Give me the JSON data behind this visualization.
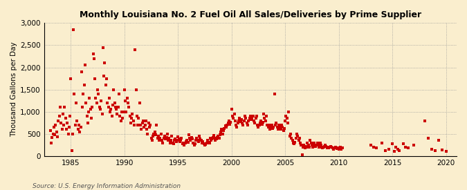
{
  "title": "Monthly Louisiana No. 2 Fuel Oil All Sales/Deliveries by Prime Supplier",
  "ylabel": "Thousand Gallons per Day",
  "source": "Source: U.S. Energy Information Administration",
  "bg_color": "#faeece",
  "dot_color": "#cc0000",
  "dot_size": 5,
  "xlim": [
    1982.5,
    2021
  ],
  "ylim": [
    0,
    3000
  ],
  "yticks": [
    0,
    500,
    1000,
    1500,
    2000,
    2500,
    3000
  ],
  "xticks": [
    1985,
    1990,
    1995,
    2000,
    2005,
    2010,
    2015,
    2020
  ],
  "data_points": [
    [
      1983.08,
      580
    ],
    [
      1983.17,
      300
    ],
    [
      1983.25,
      420
    ],
    [
      1983.33,
      500
    ],
    [
      1983.42,
      650
    ],
    [
      1983.5,
      480
    ],
    [
      1983.58,
      700
    ],
    [
      1983.67,
      550
    ],
    [
      1983.75,
      430
    ],
    [
      1983.83,
      800
    ],
    [
      1983.92,
      900
    ],
    [
      1984.0,
      1100
    ],
    [
      1984.08,
      750
    ],
    [
      1984.17,
      600
    ],
    [
      1984.25,
      950
    ],
    [
      1984.33,
      700
    ],
    [
      1984.42,
      1100
    ],
    [
      1984.5,
      850
    ],
    [
      1984.58,
      600
    ],
    [
      1984.67,
      750
    ],
    [
      1984.75,
      500
    ],
    [
      1984.83,
      650
    ],
    [
      1984.92,
      900
    ],
    [
      1985.0,
      1750
    ],
    [
      1985.08,
      130
    ],
    [
      1985.17,
      500
    ],
    [
      1985.25,
      2850
    ],
    [
      1985.33,
      1400
    ],
    [
      1985.42,
      700
    ],
    [
      1985.5,
      1200
    ],
    [
      1985.58,
      800
    ],
    [
      1985.67,
      600
    ],
    [
      1985.75,
      700
    ],
    [
      1985.83,
      550
    ],
    [
      1985.92,
      650
    ],
    [
      1986.0,
      1900
    ],
    [
      1986.08,
      1100
    ],
    [
      1986.17,
      1400
    ],
    [
      1986.25,
      1600
    ],
    [
      1986.33,
      2050
    ],
    [
      1986.42,
      1200
    ],
    [
      1986.5,
      900
    ],
    [
      1986.58,
      750
    ],
    [
      1986.67,
      1000
    ],
    [
      1986.75,
      1300
    ],
    [
      1986.83,
      1050
    ],
    [
      1986.92,
      850
    ],
    [
      1987.0,
      1100
    ],
    [
      1987.08,
      2300
    ],
    [
      1987.17,
      2200
    ],
    [
      1987.25,
      1750
    ],
    [
      1987.33,
      1300
    ],
    [
      1987.42,
      1200
    ],
    [
      1987.5,
      1500
    ],
    [
      1987.58,
      1400
    ],
    [
      1987.67,
      1100
    ],
    [
      1987.75,
      1050
    ],
    [
      1987.83,
      1250
    ],
    [
      1987.92,
      950
    ],
    [
      1988.0,
      2450
    ],
    [
      1988.08,
      1800
    ],
    [
      1988.17,
      2100
    ],
    [
      1988.25,
      1600
    ],
    [
      1988.33,
      1750
    ],
    [
      1988.42,
      1200
    ],
    [
      1988.5,
      1100
    ],
    [
      1988.58,
      1300
    ],
    [
      1988.67,
      1000
    ],
    [
      1988.75,
      1050
    ],
    [
      1988.83,
      900
    ],
    [
      1988.92,
      1150
    ],
    [
      1989.0,
      1500
    ],
    [
      1989.08,
      1200
    ],
    [
      1989.17,
      1100
    ],
    [
      1989.25,
      1050
    ],
    [
      1989.33,
      950
    ],
    [
      1989.42,
      1100
    ],
    [
      1989.5,
      1400
    ],
    [
      1989.58,
      900
    ],
    [
      1989.67,
      800
    ],
    [
      1989.75,
      1000
    ],
    [
      1989.83,
      850
    ],
    [
      1989.92,
      1000
    ],
    [
      1990.0,
      1500
    ],
    [
      1990.08,
      1250
    ],
    [
      1990.17,
      1000
    ],
    [
      1990.25,
      1300
    ],
    [
      1990.33,
      1200
    ],
    [
      1990.42,
      1100
    ],
    [
      1990.5,
      900
    ],
    [
      1990.58,
      750
    ],
    [
      1990.67,
      850
    ],
    [
      1990.75,
      950
    ],
    [
      1990.83,
      800
    ],
    [
      1990.92,
      700
    ],
    [
      1991.0,
      2400
    ],
    [
      1991.08,
      1500
    ],
    [
      1991.17,
      900
    ],
    [
      1991.25,
      700
    ],
    [
      1991.33,
      850
    ],
    [
      1991.42,
      1200
    ],
    [
      1991.5,
      700
    ],
    [
      1991.58,
      600
    ],
    [
      1991.67,
      750
    ],
    [
      1991.75,
      800
    ],
    [
      1991.83,
      650
    ],
    [
      1991.92,
      700
    ],
    [
      1992.0,
      800
    ],
    [
      1992.08,
      600
    ],
    [
      1992.17,
      500
    ],
    [
      1992.25,
      750
    ],
    [
      1992.33,
      650
    ],
    [
      1992.42,
      700
    ],
    [
      1992.5,
      400
    ],
    [
      1992.58,
      350
    ],
    [
      1992.67,
      450
    ],
    [
      1992.75,
      500
    ],
    [
      1992.83,
      550
    ],
    [
      1992.92,
      480
    ],
    [
      1993.0,
      700
    ],
    [
      1993.08,
      400
    ],
    [
      1993.17,
      450
    ],
    [
      1993.25,
      350
    ],
    [
      1993.33,
      400
    ],
    [
      1993.42,
      500
    ],
    [
      1993.5,
      350
    ],
    [
      1993.58,
      300
    ],
    [
      1993.67,
      400
    ],
    [
      1993.75,
      450
    ],
    [
      1993.83,
      380
    ],
    [
      1993.92,
      420
    ],
    [
      1994.0,
      500
    ],
    [
      1994.08,
      350
    ],
    [
      1994.17,
      400
    ],
    [
      1994.25,
      300
    ],
    [
      1994.33,
      350
    ],
    [
      1994.42,
      450
    ],
    [
      1994.5,
      300
    ],
    [
      1994.58,
      280
    ],
    [
      1994.67,
      350
    ],
    [
      1994.75,
      380
    ],
    [
      1994.83,
      320
    ],
    [
      1994.92,
      360
    ],
    [
      1995.0,
      430
    ],
    [
      1995.08,
      380
    ],
    [
      1995.17,
      320
    ],
    [
      1995.25,
      350
    ],
    [
      1995.33,
      400
    ],
    [
      1995.42,
      280
    ],
    [
      1995.5,
      300
    ],
    [
      1995.58,
      250
    ],
    [
      1995.67,
      300
    ],
    [
      1995.75,
      320
    ],
    [
      1995.83,
      350
    ],
    [
      1995.92,
      310
    ],
    [
      1996.0,
      480
    ],
    [
      1996.08,
      400
    ],
    [
      1996.17,
      350
    ],
    [
      1996.25,
      420
    ],
    [
      1996.33,
      380
    ],
    [
      1996.42,
      300
    ],
    [
      1996.5,
      250
    ],
    [
      1996.58,
      280
    ],
    [
      1996.67,
      350
    ],
    [
      1996.75,
      400
    ],
    [
      1996.83,
      360
    ],
    [
      1996.92,
      320
    ],
    [
      1997.0,
      450
    ],
    [
      1997.08,
      380
    ],
    [
      1997.17,
      350
    ],
    [
      1997.25,
      300
    ],
    [
      1997.33,
      320
    ],
    [
      1997.42,
      280
    ],
    [
      1997.5,
      250
    ],
    [
      1997.58,
      270
    ],
    [
      1997.67,
      300
    ],
    [
      1997.75,
      350
    ],
    [
      1997.83,
      310
    ],
    [
      1997.92,
      290
    ],
    [
      1998.0,
      400
    ],
    [
      1998.08,
      350
    ],
    [
      1998.17,
      380
    ],
    [
      1998.25,
      420
    ],
    [
      1998.33,
      460
    ],
    [
      1998.42,
      400
    ],
    [
      1998.5,
      350
    ],
    [
      1998.58,
      380
    ],
    [
      1998.67,
      420
    ],
    [
      1998.75,
      450
    ],
    [
      1998.83,
      410
    ],
    [
      1998.92,
      480
    ],
    [
      1999.0,
      550
    ],
    [
      1999.08,
      600
    ],
    [
      1999.17,
      500
    ],
    [
      1999.25,
      580
    ],
    [
      1999.33,
      620
    ],
    [
      1999.42,
      680
    ],
    [
      1999.5,
      650
    ],
    [
      1999.58,
      700
    ],
    [
      1999.67,
      750
    ],
    [
      1999.75,
      800
    ],
    [
      1999.83,
      720
    ],
    [
      1999.92,
      760
    ],
    [
      2000.0,
      1050
    ],
    [
      2000.08,
      900
    ],
    [
      2000.17,
      850
    ],
    [
      2000.25,
      950
    ],
    [
      2000.33,
      800
    ],
    [
      2000.42,
      700
    ],
    [
      2000.5,
      650
    ],
    [
      2000.58,
      750
    ],
    [
      2000.67,
      800
    ],
    [
      2000.75,
      850
    ],
    [
      2000.83,
      780
    ],
    [
      2000.92,
      820
    ],
    [
      2001.0,
      750
    ],
    [
      2001.08,
      700
    ],
    [
      2001.17,
      800
    ],
    [
      2001.25,
      900
    ],
    [
      2001.33,
      850
    ],
    [
      2001.42,
      750
    ],
    [
      2001.5,
      700
    ],
    [
      2001.58,
      800
    ],
    [
      2001.67,
      850
    ],
    [
      2001.75,
      900
    ],
    [
      2001.83,
      820
    ],
    [
      2001.92,
      860
    ],
    [
      2002.0,
      900
    ],
    [
      2002.08,
      800
    ],
    [
      2002.17,
      750
    ],
    [
      2002.25,
      850
    ],
    [
      2002.33,
      900
    ],
    [
      2002.42,
      700
    ],
    [
      2002.5,
      650
    ],
    [
      2002.58,
      700
    ],
    [
      2002.67,
      750
    ],
    [
      2002.75,
      800
    ],
    [
      2002.83,
      720
    ],
    [
      2002.92,
      760
    ],
    [
      2003.0,
      950
    ],
    [
      2003.08,
      850
    ],
    [
      2003.17,
      800
    ],
    [
      2003.25,
      900
    ],
    [
      2003.33,
      700
    ],
    [
      2003.42,
      650
    ],
    [
      2003.5,
      700
    ],
    [
      2003.58,
      600
    ],
    [
      2003.67,
      650
    ],
    [
      2003.75,
      700
    ],
    [
      2003.83,
      620
    ],
    [
      2003.92,
      660
    ],
    [
      2004.0,
      1400
    ],
    [
      2004.08,
      700
    ],
    [
      2004.17,
      750
    ],
    [
      2004.25,
      650
    ],
    [
      2004.33,
      600
    ],
    [
      2004.42,
      700
    ],
    [
      2004.5,
      650
    ],
    [
      2004.58,
      600
    ],
    [
      2004.67,
      700
    ],
    [
      2004.75,
      650
    ],
    [
      2004.83,
      580
    ],
    [
      2004.92,
      620
    ],
    [
      2005.0,
      800
    ],
    [
      2005.08,
      900
    ],
    [
      2005.17,
      850
    ],
    [
      2005.25,
      750
    ],
    [
      2005.33,
      1000
    ],
    [
      2005.42,
      450
    ],
    [
      2005.5,
      500
    ],
    [
      2005.58,
      400
    ],
    [
      2005.67,
      350
    ],
    [
      2005.75,
      300
    ],
    [
      2005.83,
      280
    ],
    [
      2005.92,
      310
    ],
    [
      2006.0,
      400
    ],
    [
      2006.08,
      500
    ],
    [
      2006.17,
      450
    ],
    [
      2006.25,
      350
    ],
    [
      2006.33,
      400
    ],
    [
      2006.42,
      300
    ],
    [
      2006.5,
      250
    ],
    [
      2006.58,
      30
    ],
    [
      2006.67,
      200
    ],
    [
      2006.75,
      250
    ],
    [
      2006.83,
      180
    ],
    [
      2006.92,
      220
    ],
    [
      2007.0,
      200
    ],
    [
      2007.08,
      300
    ],
    [
      2007.17,
      250
    ],
    [
      2007.25,
      200
    ],
    [
      2007.33,
      350
    ],
    [
      2007.42,
      300
    ],
    [
      2007.5,
      250
    ],
    [
      2007.58,
      200
    ],
    [
      2007.67,
      300
    ],
    [
      2007.75,
      250
    ],
    [
      2007.83,
      220
    ],
    [
      2007.92,
      240
    ],
    [
      2008.0,
      300
    ],
    [
      2008.08,
      250
    ],
    [
      2008.17,
      200
    ],
    [
      2008.25,
      300
    ],
    [
      2008.33,
      250
    ],
    [
      2008.42,
      200
    ],
    [
      2008.5,
      180
    ],
    [
      2008.58,
      200
    ],
    [
      2008.67,
      220
    ],
    [
      2008.75,
      240
    ],
    [
      2008.83,
      210
    ],
    [
      2008.92,
      190
    ],
    [
      2009.0,
      200
    ],
    [
      2009.08,
      180
    ],
    [
      2009.17,
      200
    ],
    [
      2009.25,
      220
    ],
    [
      2009.33,
      200
    ],
    [
      2009.42,
      180
    ],
    [
      2009.5,
      160
    ],
    [
      2009.58,
      180
    ],
    [
      2009.67,
      200
    ],
    [
      2009.75,
      180
    ],
    [
      2009.83,
      170
    ],
    [
      2009.92,
      190
    ],
    [
      2010.0,
      160
    ],
    [
      2010.08,
      180
    ],
    [
      2010.17,
      200
    ],
    [
      2010.25,
      160
    ],
    [
      2010.33,
      180
    ],
    [
      2013.0,
      250
    ],
    [
      2013.25,
      200
    ],
    [
      2013.5,
      180
    ],
    [
      2014.0,
      300
    ],
    [
      2014.33,
      120
    ],
    [
      2014.67,
      150
    ],
    [
      2015.0,
      280
    ],
    [
      2015.17,
      110
    ],
    [
      2015.33,
      200
    ],
    [
      2015.5,
      150
    ],
    [
      2015.67,
      130
    ],
    [
      2016.0,
      280
    ],
    [
      2016.25,
      200
    ],
    [
      2016.5,
      180
    ],
    [
      2017.0,
      250
    ],
    [
      2018.0,
      800
    ],
    [
      2018.33,
      400
    ],
    [
      2018.67,
      150
    ],
    [
      2019.0,
      130
    ],
    [
      2019.33,
      350
    ],
    [
      2019.67,
      140
    ],
    [
      2020.0,
      100
    ]
  ]
}
